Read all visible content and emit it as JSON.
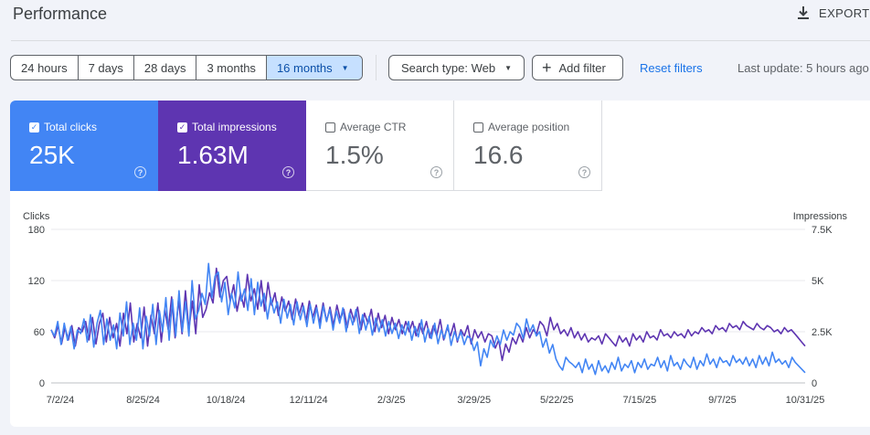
{
  "header": {
    "title": "Performance",
    "export_label": "EXPORT"
  },
  "toolbar": {
    "ranges": [
      "24 hours",
      "7 days",
      "28 days",
      "3 months",
      "16 months"
    ],
    "selected_range": "16 months",
    "search_type": "Search type: Web",
    "add_filter": "Add filter",
    "reset_filters": "Reset filters",
    "last_update": "Last update: 5 hours ago"
  },
  "metrics": {
    "clicks": {
      "label": "Total clicks",
      "value": "25K",
      "checked": true,
      "color": "#4285f4"
    },
    "impressions": {
      "label": "Total impressions",
      "value": "1.63M",
      "checked": true,
      "color": "#5e35b1"
    },
    "ctr": {
      "label": "Average CTR",
      "value": "1.5%",
      "checked": false
    },
    "position": {
      "label": "Average position",
      "value": "16.6",
      "checked": false
    }
  },
  "chart_data": {
    "type": "line",
    "ylabel_left": "Clicks",
    "ylabel_right": "Impressions",
    "y_left_ticks": [
      "180",
      "120",
      "60",
      "0"
    ],
    "y_right_ticks": [
      "7.5K",
      "5K",
      "2.5K",
      "0"
    ],
    "y_left_range": [
      0,
      180
    ],
    "y_right_range": [
      0,
      7500
    ],
    "x_ticks": [
      "7/2/24",
      "8/25/24",
      "10/18/24",
      "12/11/24",
      "2/3/25",
      "3/29/25",
      "5/22/25",
      "7/15/25",
      "9/7/25",
      "10/31/25"
    ],
    "grid": true,
    "series": [
      {
        "name": "Clicks",
        "axis": "left",
        "color": "#4285f4",
        "values": [
          62,
          55,
          72,
          45,
          70,
          50,
          66,
          40,
          62,
          58,
          75,
          48,
          80,
          42,
          70,
          85,
          45,
          75,
          50,
          68,
          40,
          82,
          55,
          95,
          45,
          70,
          50,
          88,
          40,
          78,
          55,
          92,
          45,
          85,
          60,
          100,
          50,
          98,
          55,
          108,
          60,
          95,
          55,
          120,
          75,
          85,
          105,
          92,
          140,
          100,
          125,
          130,
          95,
          118,
          80,
          105,
          88,
          130,
          96,
          110,
          85,
          122,
          80,
          118,
          90,
          105,
          75,
          100,
          82,
          95,
          70,
          98,
          76,
          92,
          68,
          95,
          74,
          90,
          66,
          92,
          70,
          88,
          64,
          90,
          72,
          86,
          62,
          84,
          70,
          88,
          60,
          82,
          68,
          86,
          58,
          80,
          62,
          78,
          56,
          76,
          60,
          74,
          55,
          72,
          58,
          70,
          52,
          68,
          56,
          72,
          50,
          66,
          54,
          74,
          48,
          64,
          52,
          70,
          46,
          62,
          52,
          68,
          44,
          60,
          50,
          60,
          45,
          55,
          52,
          38,
          48,
          20,
          40,
          30,
          50,
          42,
          55,
          45,
          62,
          50,
          60,
          56,
          70,
          65,
          52,
          75,
          60,
          68,
          55,
          60,
          42,
          52,
          35,
          45,
          28,
          20,
          15,
          30,
          25,
          22,
          18,
          24,
          12,
          28,
          16,
          22,
          10,
          26,
          14,
          20,
          12,
          24,
          16,
          30,
          14,
          22,
          18,
          26,
          12,
          24,
          18,
          28,
          16,
          22,
          20,
          30,
          18,
          26,
          14,
          32,
          20,
          24,
          16,
          28,
          22,
          18,
          30,
          16,
          26,
          20,
          34,
          22,
          28,
          18,
          30,
          24,
          26,
          20,
          32,
          24,
          28,
          22,
          30,
          20,
          28,
          18,
          32,
          22,
          30,
          20,
          36,
          24,
          28,
          22,
          26,
          18,
          30,
          24,
          20,
          16,
          12
        ]
      },
      {
        "name": "Impressions",
        "axis": "right",
        "color": "#5e35b1",
        "values": [
          2600,
          2200,
          2800,
          1900,
          2700,
          2100,
          2800,
          1800,
          2700,
          2500,
          3000,
          2100,
          3200,
          1900,
          2900,
          3400,
          2000,
          3200,
          2200,
          2900,
          1800,
          3400,
          2400,
          3900,
          2000,
          2900,
          2200,
          3700,
          1800,
          3300,
          2400,
          3900,
          2000,
          3600,
          2600,
          4200,
          2200,
          4100,
          2400,
          4500,
          2600,
          4000,
          2400,
          4800,
          3200,
          3600,
          4400,
          3900,
          5600,
          4200,
          5000,
          5200,
          4000,
          4800,
          3500,
          4400,
          3700,
          5300,
          4000,
          4600,
          3600,
          5000,
          3500,
          4900,
          3800,
          4400,
          3300,
          4200,
          3500,
          4000,
          3100,
          4100,
          3300,
          3900,
          3000,
          4000,
          3200,
          3800,
          2900,
          3900,
          3000,
          3700,
          2800,
          3800,
          3100,
          3600,
          2700,
          3600,
          3000,
          3700,
          2600,
          3400,
          2900,
          3600,
          2500,
          3400,
          2700,
          3300,
          2400,
          3200,
          2600,
          3100,
          2400,
          3000,
          2500,
          3000,
          2300,
          2900,
          2400,
          3000,
          2200,
          2800,
          2300,
          3100,
          2100,
          2700,
          2300,
          2900,
          2000,
          2600,
          2300,
          2800,
          1900,
          2600,
          2200,
          2500,
          2000,
          2400,
          2300,
          1700,
          2100,
          1100,
          1900,
          1500,
          2200,
          1900,
          2400,
          2000,
          2700,
          2200,
          2600,
          2400,
          3000,
          2800,
          2300,
          3200,
          2600,
          2900,
          2400,
          2600,
          2300,
          2700,
          2200,
          2500,
          2100,
          2400,
          2000,
          2200,
          2100,
          2300,
          1900,
          2400,
          2200,
          2000,
          1800,
          2300,
          2000,
          2200,
          1800,
          2400,
          2100,
          2300,
          2000,
          2500,
          2200,
          2300,
          2100,
          2600,
          2300,
          2400,
          2200,
          2500,
          2300,
          2400,
          2200,
          2600,
          2300,
          2500,
          2400,
          2700,
          2500,
          2600,
          2400,
          2800,
          2600,
          2700,
          2500,
          2900,
          2700,
          2800,
          2600,
          3000,
          2800,
          2700,
          2600,
          2900,
          2700,
          2600,
          2800,
          2700,
          2500,
          2600,
          2400,
          2700,
          2500,
          2600,
          2400,
          2200,
          2000,
          1800
        ]
      }
    ]
  }
}
